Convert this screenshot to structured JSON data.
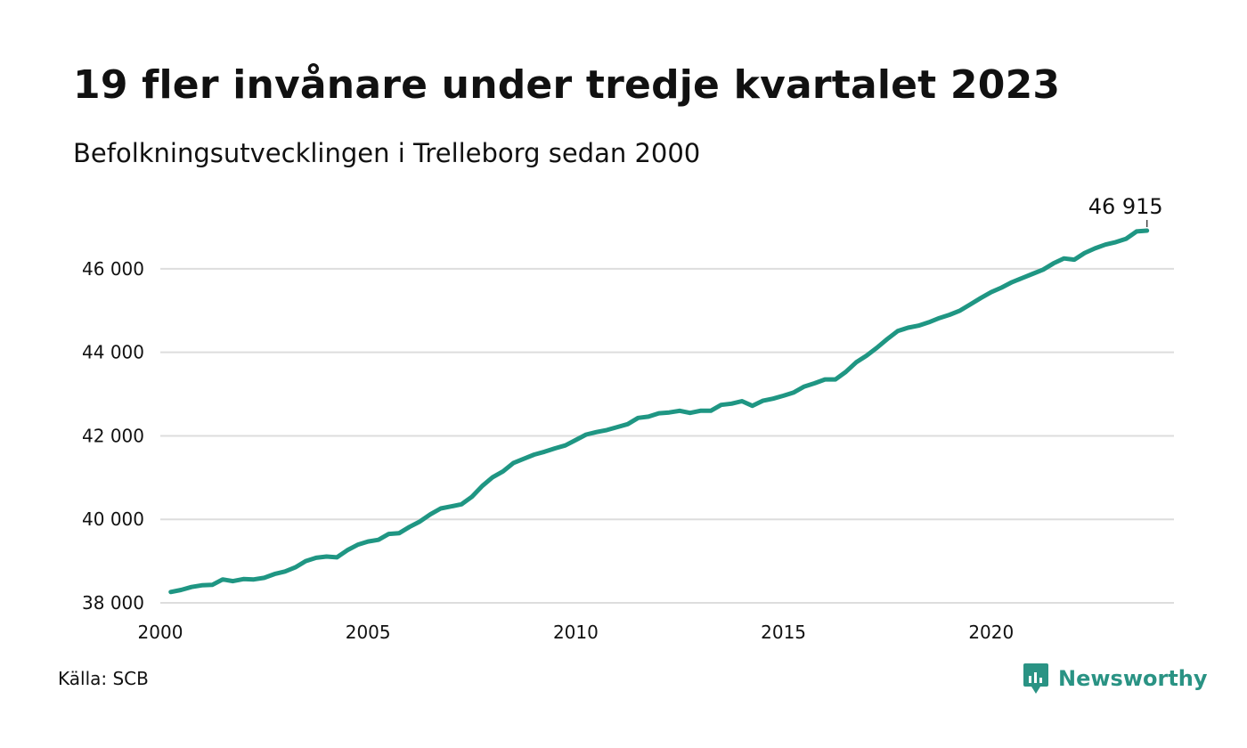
{
  "header": {
    "title": "19 fler invånare under tredje kvartalet 2023",
    "subtitle": "Befolkningsutvecklingen i Trelleborg sedan 2000"
  },
  "footer": {
    "source": "Källa: SCB",
    "brand": "Newsworthy",
    "brand_icon": "newsworthy-logo-icon"
  },
  "colors": {
    "line": "#1f9683",
    "grid": "#dddddd",
    "text": "#111111",
    "brand": "#2a9384"
  },
  "chart_data": {
    "type": "line",
    "title": "19 fler invånare under tredje kvartalet 2023",
    "subtitle": "Befolkningsutvecklingen i Trelleborg sedan 2000",
    "xlabel": "",
    "ylabel": "",
    "xlim": [
      2000,
      2024.4
    ],
    "ylim": [
      38000,
      47000
    ],
    "x_ticks": [
      2000,
      2005,
      2010,
      2015,
      2020
    ],
    "x_tick_labels": [
      "2000",
      "2005",
      "2010",
      "2015",
      "2020"
    ],
    "y_ticks": [
      38000,
      40000,
      42000,
      44000,
      46000
    ],
    "y_tick_labels": [
      "38 000",
      "40 000",
      "42 000",
      "44 000",
      "46 000"
    ],
    "grid": "horizontal",
    "end_label": "46 915",
    "series": [
      {
        "x": [
          2000.25,
          2000.5,
          2000.75,
          2001,
          2001.25,
          2001.5,
          2001.75,
          2002,
          2002.25,
          2002.5,
          2002.75,
          2003,
          2003.25,
          2003.5,
          2003.75,
          2004,
          2004.25,
          2004.5,
          2004.75,
          2005,
          2005.25,
          2005.5,
          2005.75,
          2006,
          2006.25,
          2006.5,
          2006.75,
          2007,
          2007.25,
          2007.5,
          2007.75,
          2008,
          2008.25,
          2008.5,
          2008.75,
          2009,
          2009.25,
          2009.5,
          2009.75,
          2010,
          2010.25,
          2010.5,
          2010.75,
          2011,
          2011.25,
          2011.5,
          2011.75,
          2012,
          2012.25,
          2012.5,
          2012.75,
          2013,
          2013.25,
          2013.5,
          2013.75,
          2014,
          2014.25,
          2014.5,
          2014.75,
          2015,
          2015.25,
          2015.5,
          2015.75,
          2016,
          2016.25,
          2016.5,
          2016.75,
          2017,
          2017.25,
          2017.5,
          2017.75,
          2018,
          2018.25,
          2018.5,
          2018.75,
          2019,
          2019.25,
          2019.5,
          2019.75,
          2020,
          2020.25,
          2020.5,
          2020.75,
          2021,
          2021.25,
          2021.5,
          2021.75,
          2022,
          2022.25,
          2022.5,
          2022.75,
          2023,
          2023.25,
          2023.5,
          2023.75
        ],
        "y": [
          38260,
          38310,
          38380,
          38420,
          38430,
          38560,
          38520,
          38570,
          38560,
          38600,
          38690,
          38750,
          38850,
          39000,
          39080,
          39110,
          39090,
          39260,
          39390,
          39470,
          39510,
          39650,
          39670,
          39820,
          39950,
          40120,
          40260,
          40310,
          40360,
          40540,
          40800,
          41010,
          41150,
          41350,
          41450,
          41550,
          41620,
          41700,
          41770,
          41900,
          42030,
          42090,
          42140,
          42210,
          42280,
          42430,
          42460,
          42540,
          42560,
          42600,
          42550,
          42600,
          42600,
          42740,
          42770,
          42830,
          42720,
          42840,
          42890,
          42960,
          43040,
          43180,
          43260,
          43350,
          43350,
          43530,
          43760,
          43920,
          44110,
          44320,
          44510,
          44590,
          44640,
          44720,
          44820,
          44900,
          45000,
          45150,
          45300,
          45440,
          45550,
          45680,
          45780,
          45880,
          45980,
          46130,
          46250,
          46220,
          46380,
          46490,
          46580,
          46640,
          46720,
          46896,
          46915
        ]
      }
    ]
  }
}
